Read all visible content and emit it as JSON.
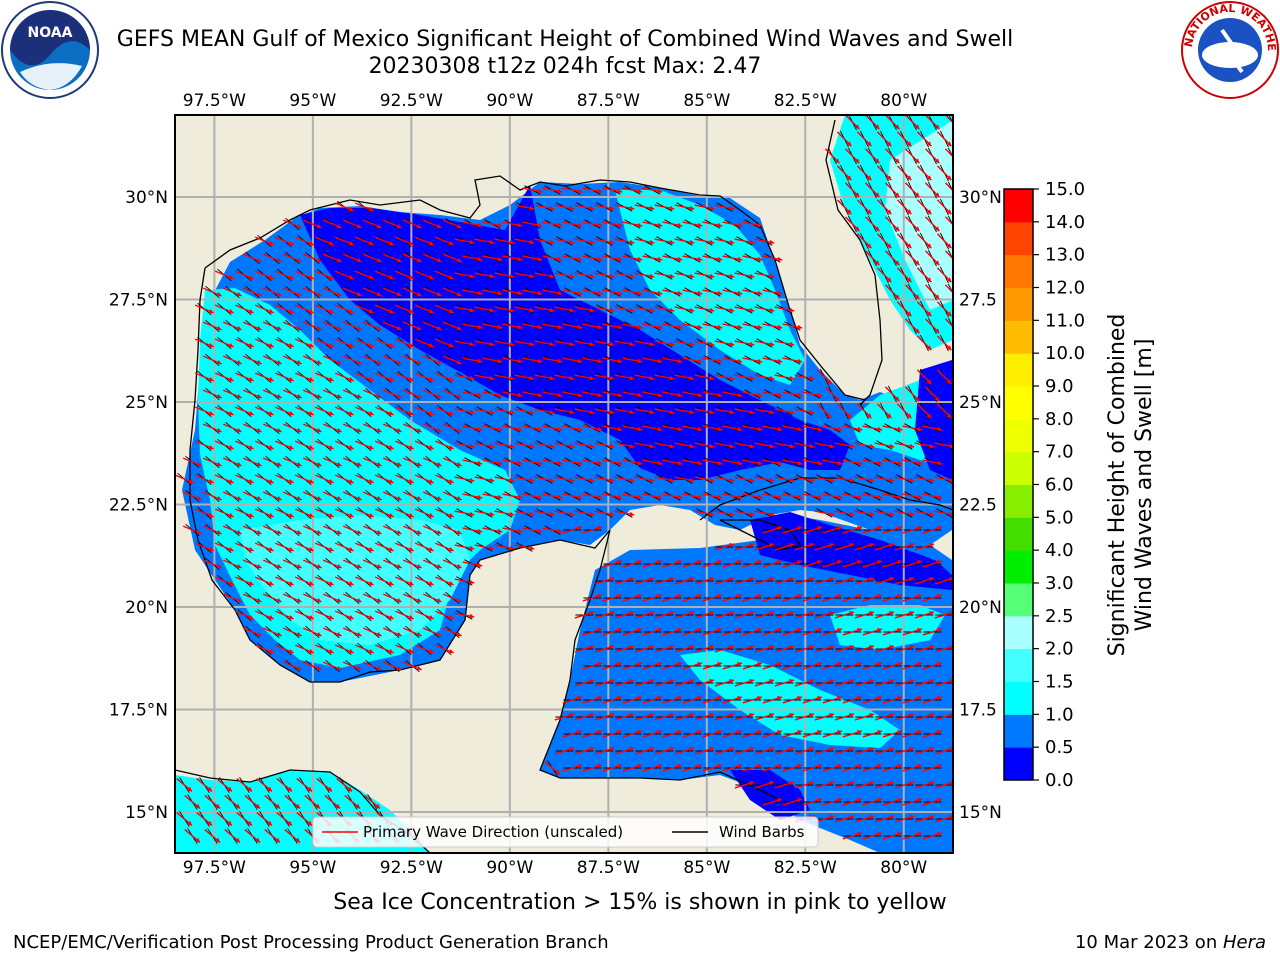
{
  "header": {
    "title_line1": "GEFS MEAN Gulf of Mexico Significant Height of Combined Wind Waves and Swell",
    "title_line2": "20230308 t12z 024h fcst   Max: 2.47",
    "logo_left_text": "NOAA",
    "logo_right_text": "NATIONAL WEATHER SERVICE"
  },
  "map": {
    "lon_ticks": [
      "97.5°W",
      "95°W",
      "92.5°W",
      "90°W",
      "87.5°W",
      "85°W",
      "82.5°W",
      "80°W"
    ],
    "lat_ticks_left": [
      "30°N",
      "27.5°N",
      "25°N",
      "22.5°N",
      "20°N",
      "17.5°N",
      "15°N"
    ],
    "lat_ticks_right": [
      "30°N",
      "27.5",
      "25°N",
      "22.5",
      "20°N",
      "17.5",
      "15°N"
    ],
    "colors": {
      "land": "#efecdc",
      "grid": "#b0b0b0",
      "coast": "#000000",
      "arrow": "#ff0000",
      "barb": "#000000"
    },
    "legend": {
      "primary_wave": "Primary Wave Direction (unscaled)",
      "wind_barbs": "Wind Barbs"
    }
  },
  "colorbar": {
    "label_line1": "Significant Height of Combined",
    "label_line2": "Wind Waves and Swell [m]",
    "ticks": [
      "0.0",
      "0.5",
      "1.0",
      "1.5",
      "2.0",
      "2.5",
      "3.0",
      "4.0",
      "5.0",
      "6.0",
      "7.0",
      "8.0",
      "9.0",
      "10.0",
      "11.0",
      "12.0",
      "13.0",
      "14.0",
      "15.0"
    ],
    "colors": [
      "#0000ff",
      "#0077ff",
      "#00ffff",
      "#44ffff",
      "#aaffff",
      "#55ff77",
      "#00ee00",
      "#44dd00",
      "#88ee00",
      "#ccff00",
      "#eeff00",
      "#ffff00",
      "#ffee00",
      "#ffbb00",
      "#ff9900",
      "#ff7700",
      "#ff4400",
      "#ff0000"
    ]
  },
  "chart_data": {
    "type": "heatmap",
    "title": "GEFS MEAN Gulf of Mexico Significant Height of Combined Wind Waves and Swell",
    "subtitle": "20230308 t12z 024h fcst   Max: 2.47",
    "x_range_lon": [
      -98.5,
      -78.75
    ],
    "y_range_lat": [
      14,
      32
    ],
    "max_value_m": 2.47,
    "colorbar_levels_m": [
      0.0,
      0.5,
      1.0,
      1.5,
      2.0,
      2.5,
      3.0,
      4.0,
      5.0,
      6.0,
      7.0,
      8.0,
      9.0,
      10.0,
      11.0,
      12.0,
      13.0,
      14.0,
      15.0
    ],
    "grid": true,
    "legend_position": "bottom-center"
  },
  "footer": {
    "note": "Sea Ice Concentration > 15% is shown in pink to yellow",
    "left": "NCEP/EMC/Verification Post Processing Product Generation Branch",
    "right_prefix": "10 Mar 2023 on ",
    "right_host": "Hera"
  }
}
